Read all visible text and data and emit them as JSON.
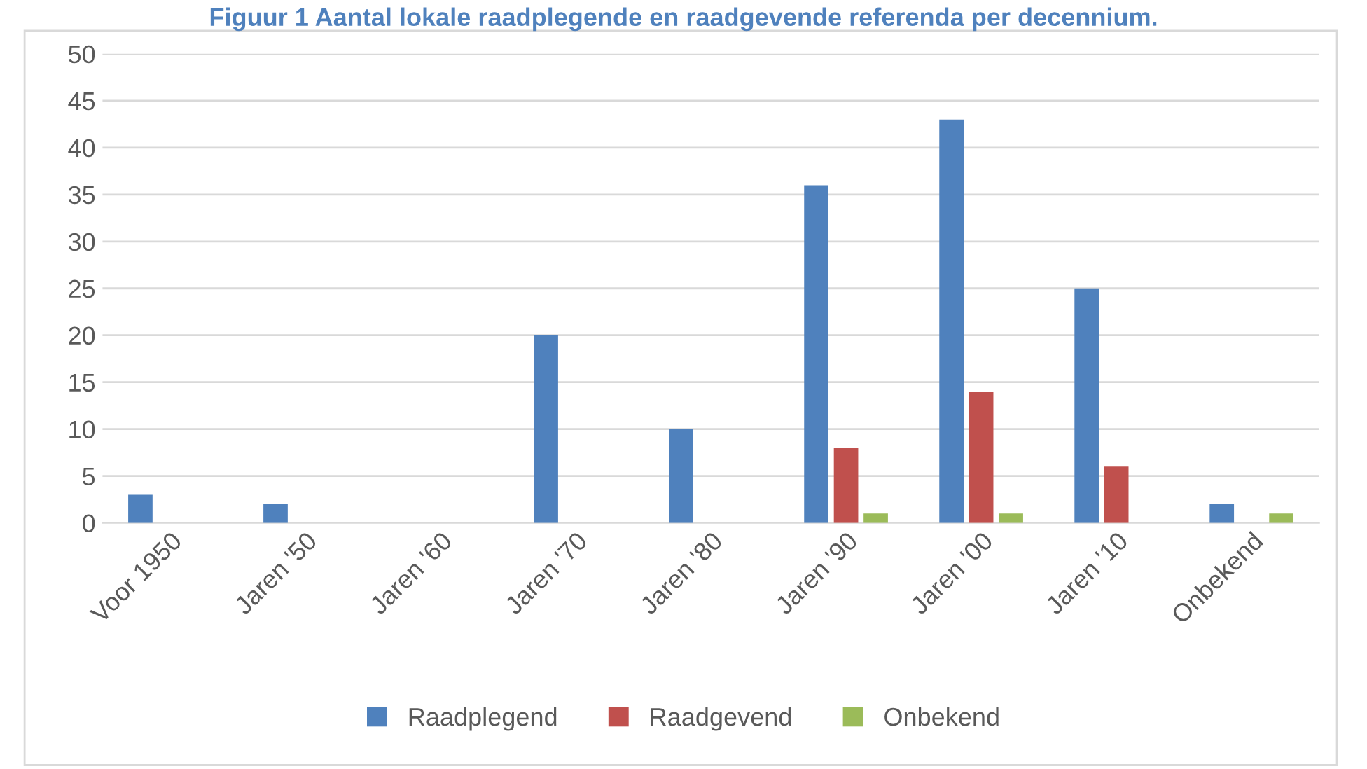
{
  "chart_data": {
    "type": "bar",
    "title": "Figuur 1 Aantal lokale raadplegende en raadgevende referenda per decennium.",
    "categories": [
      "Voor 1950",
      "Jaren '50",
      "Jaren '60",
      "Jaren '70",
      "Jaren '80",
      "Jaren '90",
      "Jaren '00",
      "Jaren '10",
      "Onbekend"
    ],
    "series": [
      {
        "name": "Raadplegend",
        "color": "#4f81bd",
        "values": [
          3,
          2,
          0,
          20,
          10,
          36,
          43,
          25,
          2
        ]
      },
      {
        "name": "Raadgevend",
        "color": "#c0504d",
        "values": [
          0,
          0,
          0,
          0,
          0,
          8,
          14,
          6,
          0
        ]
      },
      {
        "name": "Onbekend",
        "color": "#9bbb59",
        "values": [
          0,
          0,
          0,
          0,
          0,
          1,
          1,
          0,
          1
        ]
      }
    ],
    "ylim": [
      0,
      50
    ],
    "yticks": [
      0,
      5,
      10,
      15,
      20,
      25,
      30,
      35,
      40,
      45,
      50
    ],
    "grid": "y",
    "legend": "bottom"
  }
}
